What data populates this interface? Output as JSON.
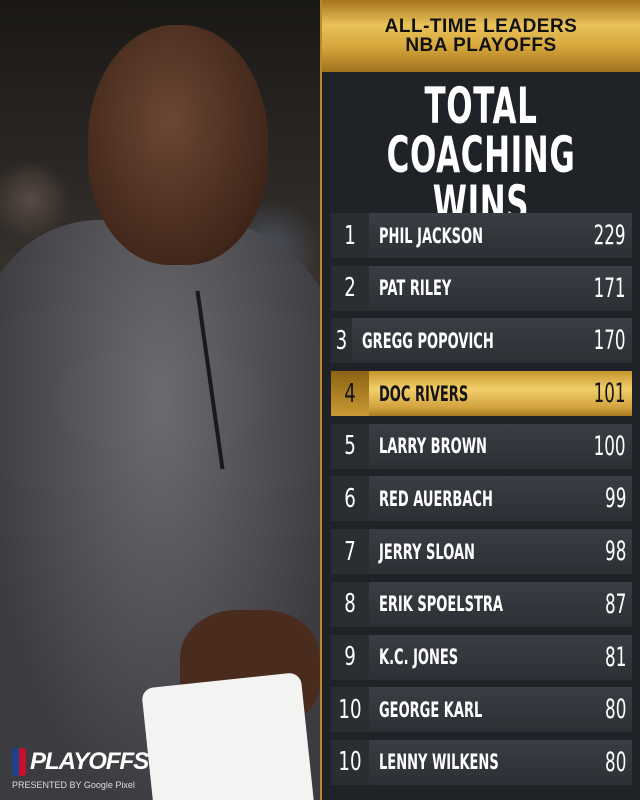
{
  "header": {
    "line1": "ALL-TIME LEADERS",
    "line2": "NBA PLAYOFFS"
  },
  "title": {
    "line1": "TOTAL",
    "line2": "COACHING WINS"
  },
  "accent_color": "#d6a63b",
  "highlight_rank_index": 3,
  "leaders": [
    {
      "rank": "1",
      "name": "PHIL JACKSON",
      "wins": "229"
    },
    {
      "rank": "2",
      "name": "PAT RILEY",
      "wins": "171"
    },
    {
      "rank": "3",
      "name": "GREGG POPOVICH",
      "wins": "170"
    },
    {
      "rank": "4",
      "name": "DOC RIVERS",
      "wins": "101"
    },
    {
      "rank": "5",
      "name": "LARRY BROWN",
      "wins": "100"
    },
    {
      "rank": "6",
      "name": "RED AUERBACH",
      "wins": "99"
    },
    {
      "rank": "7",
      "name": "JERRY SLOAN",
      "wins": "98"
    },
    {
      "rank": "8",
      "name": "ERIK SPOELSTRA",
      "wins": "87"
    },
    {
      "rank": "9",
      "name": "K.C. JONES",
      "wins": "81"
    },
    {
      "rank": "10",
      "name": "GEORGE KARL",
      "wins": "80"
    },
    {
      "rank": "10",
      "name": "LENNY WILKENS",
      "wins": "80"
    }
  ],
  "branding": {
    "logo_text": "PLAYOFFS",
    "presented_by": "PRESENTED BY Google Pixel"
  }
}
